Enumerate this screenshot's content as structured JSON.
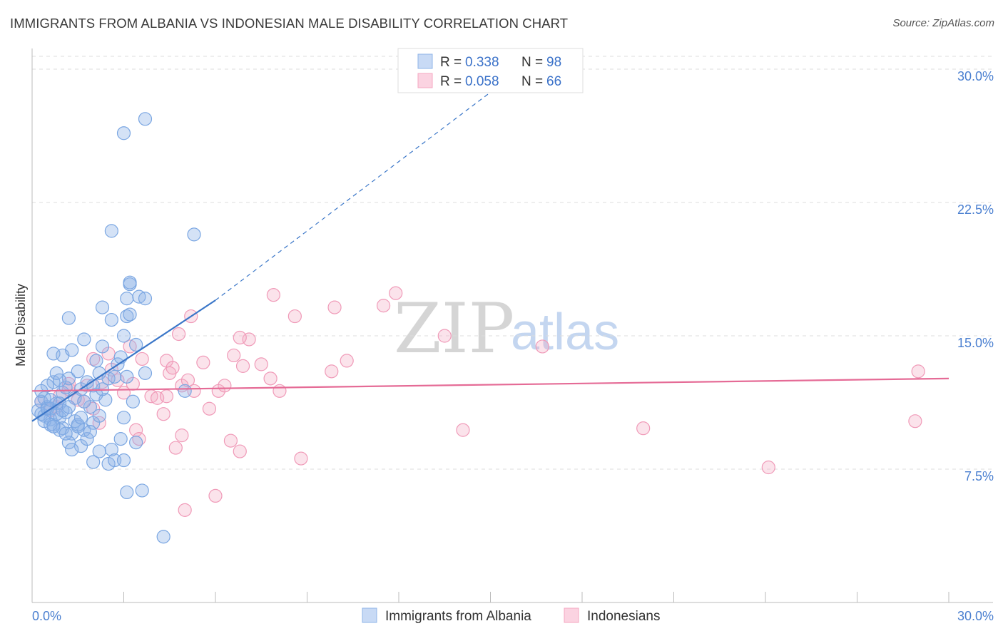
{
  "title": "IMMIGRANTS FROM ALBANIA VS INDONESIAN MALE DISABILITY CORRELATION CHART",
  "source": "Source: ZipAtlas.com",
  "watermark": {
    "zip": "ZIP",
    "atlas": "atlas"
  },
  "colors": {
    "blue": "#8fb4e8",
    "blue_line": "#3a76c8",
    "pink": "#f4a7c1",
    "pink_line": "#e56b96",
    "grid": "#dddddd",
    "axis_text": "#4a7fd0"
  },
  "legend": {
    "series1": {
      "r_label": "R =",
      "r_value": "0.338",
      "n_label": "N =",
      "n_value": "98"
    },
    "series2": {
      "r_label": "R =",
      "r_value": "0.058",
      "n_label": "N =",
      "n_value": "66"
    }
  },
  "chart_data": {
    "type": "scatter",
    "title": "IMMIGRANTS FROM ALBANIA VS INDONESIAN MALE DISABILITY CORRELATION CHART",
    "xlabel": "",
    "ylabel": "Male Disability",
    "xlim": [
      0,
      30
    ],
    "ylim": [
      0,
      31
    ],
    "x_tick_labels": [
      "0.0%",
      "30.0%"
    ],
    "y_ticks": [
      7.5,
      15.0,
      22.5,
      30.0
    ],
    "y_tick_labels": [
      "7.5%",
      "15.0%",
      "22.5%",
      "30.0%"
    ],
    "legend_position": "top-center",
    "series": [
      {
        "name": "Immigrants from Albania",
        "color": "#8fb4e8",
        "trend": {
          "x": [
            0.0,
            6.0
          ],
          "y": [
            10.2,
            17.0
          ],
          "dashed_extension_to": [
            16.0,
            30.0
          ]
        },
        "points": [
          [
            0.2,
            10.8
          ],
          [
            0.3,
            11.3
          ],
          [
            0.4,
            10.5
          ],
          [
            0.5,
            11.0
          ],
          [
            0.6,
            10.3
          ],
          [
            0.7,
            10.0
          ],
          [
            0.4,
            11.5
          ],
          [
            0.8,
            11.2
          ],
          [
            0.3,
            10.6
          ],
          [
            0.6,
            10.9
          ],
          [
            0.9,
            10.4
          ],
          [
            1.0,
            11.8
          ],
          [
            1.1,
            12.1
          ],
          [
            0.7,
            12.4
          ],
          [
            0.8,
            12.9
          ],
          [
            1.2,
            12.6
          ],
          [
            1.0,
            9.8
          ],
          [
            1.3,
            9.5
          ],
          [
            1.5,
            9.9
          ],
          [
            1.4,
            10.2
          ],
          [
            0.9,
            9.7
          ],
          [
            1.2,
            9.0
          ],
          [
            1.6,
            8.8
          ],
          [
            1.8,
            9.2
          ],
          [
            1.7,
            9.7
          ],
          [
            2.0,
            10.1
          ],
          [
            2.2,
            10.5
          ],
          [
            1.9,
            11.0
          ],
          [
            2.4,
            11.4
          ],
          [
            2.1,
            11.7
          ],
          [
            1.6,
            12.0
          ],
          [
            1.8,
            12.4
          ],
          [
            2.5,
            12.6
          ],
          [
            2.2,
            12.9
          ],
          [
            2.7,
            12.7
          ],
          [
            2.1,
            13.6
          ],
          [
            2.8,
            13.4
          ],
          [
            0.7,
            14.0
          ],
          [
            1.0,
            13.9
          ],
          [
            1.3,
            14.2
          ],
          [
            2.3,
            14.4
          ],
          [
            2.6,
            15.9
          ],
          [
            3.0,
            15.0
          ],
          [
            3.1,
            16.1
          ],
          [
            3.2,
            16.2
          ],
          [
            1.2,
            16.0
          ],
          [
            1.7,
            14.8
          ],
          [
            3.4,
            14.5
          ],
          [
            3.1,
            17.1
          ],
          [
            3.5,
            17.2
          ],
          [
            3.2,
            17.9
          ],
          [
            2.3,
            16.6
          ],
          [
            3.7,
            17.1
          ],
          [
            3.2,
            18.0
          ],
          [
            2.9,
            13.8
          ],
          [
            3.1,
            12.7
          ],
          [
            3.7,
            12.9
          ],
          [
            3.3,
            11.3
          ],
          [
            3.0,
            10.4
          ],
          [
            2.9,
            9.2
          ],
          [
            2.6,
            8.6
          ],
          [
            2.2,
            8.5
          ],
          [
            2.0,
            7.9
          ],
          [
            2.5,
            7.8
          ],
          [
            2.7,
            8.0
          ],
          [
            3.0,
            8.0
          ],
          [
            3.4,
            9.0
          ],
          [
            3.1,
            6.2
          ],
          [
            3.6,
            6.3
          ],
          [
            4.3,
            3.7
          ],
          [
            2.6,
            20.9
          ],
          [
            5.3,
            20.7
          ],
          [
            3.0,
            26.4
          ],
          [
            3.7,
            27.2
          ],
          [
            0.5,
            10.9
          ],
          [
            0.6,
            11.4
          ],
          [
            0.9,
            11.2
          ],
          [
            1.1,
            10.7
          ],
          [
            1.4,
            11.5
          ],
          [
            1.5,
            10.0
          ],
          [
            1.7,
            11.3
          ],
          [
            2.0,
            12.2
          ],
          [
            1.9,
            9.6
          ],
          [
            1.3,
            8.6
          ],
          [
            1.1,
            9.5
          ],
          [
            0.8,
            10.6
          ],
          [
            0.4,
            10.2
          ],
          [
            0.5,
            12.2
          ],
          [
            0.6,
            10.0
          ],
          [
            1.0,
            10.8
          ],
          [
            1.2,
            11.0
          ],
          [
            1.6,
            10.4
          ],
          [
            0.7,
            9.9
          ],
          [
            1.5,
            13.0
          ],
          [
            2.3,
            12.0
          ],
          [
            5.0,
            11.9
          ],
          [
            0.3,
            11.9
          ],
          [
            0.9,
            12.5
          ]
        ]
      },
      {
        "name": "Indonesians",
        "color": "#f4a7c1",
        "trend": {
          "x": [
            0.0,
            30.0
          ],
          "y": [
            11.9,
            12.6
          ]
        },
        "points": [
          [
            0.3,
            11.3
          ],
          [
            0.6,
            10.8
          ],
          [
            0.9,
            11.6
          ],
          [
            1.2,
            12.0
          ],
          [
            1.5,
            11.4
          ],
          [
            1.8,
            12.2
          ],
          [
            2.0,
            10.9
          ],
          [
            2.3,
            12.4
          ],
          [
            2.6,
            13.1
          ],
          [
            2.8,
            12.5
          ],
          [
            3.0,
            11.8
          ],
          [
            3.3,
            12.3
          ],
          [
            3.6,
            13.7
          ],
          [
            3.9,
            11.6
          ],
          [
            4.1,
            11.5
          ],
          [
            4.3,
            10.6
          ],
          [
            4.4,
            13.6
          ],
          [
            4.5,
            12.9
          ],
          [
            4.6,
            13.2
          ],
          [
            4.9,
            12.2
          ],
          [
            5.1,
            12.5
          ],
          [
            5.3,
            11.9
          ],
          [
            5.6,
            13.5
          ],
          [
            5.8,
            10.9
          ],
          [
            6.1,
            11.9
          ],
          [
            6.3,
            12.2
          ],
          [
            6.6,
            13.9
          ],
          [
            6.9,
            13.3
          ],
          [
            7.1,
            14.8
          ],
          [
            7.5,
            13.4
          ],
          [
            7.8,
            12.6
          ],
          [
            8.1,
            11.9
          ],
          [
            3.2,
            14.4
          ],
          [
            4.8,
            15.1
          ],
          [
            5.2,
            16.1
          ],
          [
            6.8,
            14.9
          ],
          [
            7.9,
            17.3
          ],
          [
            8.6,
            16.1
          ],
          [
            9.9,
            16.6
          ],
          [
            10.3,
            13.6
          ],
          [
            11.5,
            16.7
          ],
          [
            11.9,
            17.4
          ],
          [
            13.5,
            15.0
          ],
          [
            16.7,
            14.4
          ],
          [
            29.0,
            13.0
          ],
          [
            28.9,
            10.2
          ],
          [
            20.0,
            9.8
          ],
          [
            24.1,
            7.6
          ],
          [
            14.1,
            9.7
          ],
          [
            8.8,
            8.1
          ],
          [
            6.8,
            8.5
          ],
          [
            6.5,
            9.1
          ],
          [
            6.0,
            6.0
          ],
          [
            5.0,
            5.2
          ],
          [
            4.7,
            8.7
          ],
          [
            4.9,
            9.4
          ],
          [
            3.4,
            9.7
          ],
          [
            3.5,
            9.2
          ],
          [
            2.2,
            10.1
          ],
          [
            1.7,
            11.3
          ],
          [
            1.2,
            12.3
          ],
          [
            0.8,
            11.0
          ],
          [
            2.5,
            14.0
          ],
          [
            9.8,
            13.0
          ],
          [
            4.4,
            11.6
          ],
          [
            2.0,
            13.7
          ]
        ]
      }
    ]
  }
}
